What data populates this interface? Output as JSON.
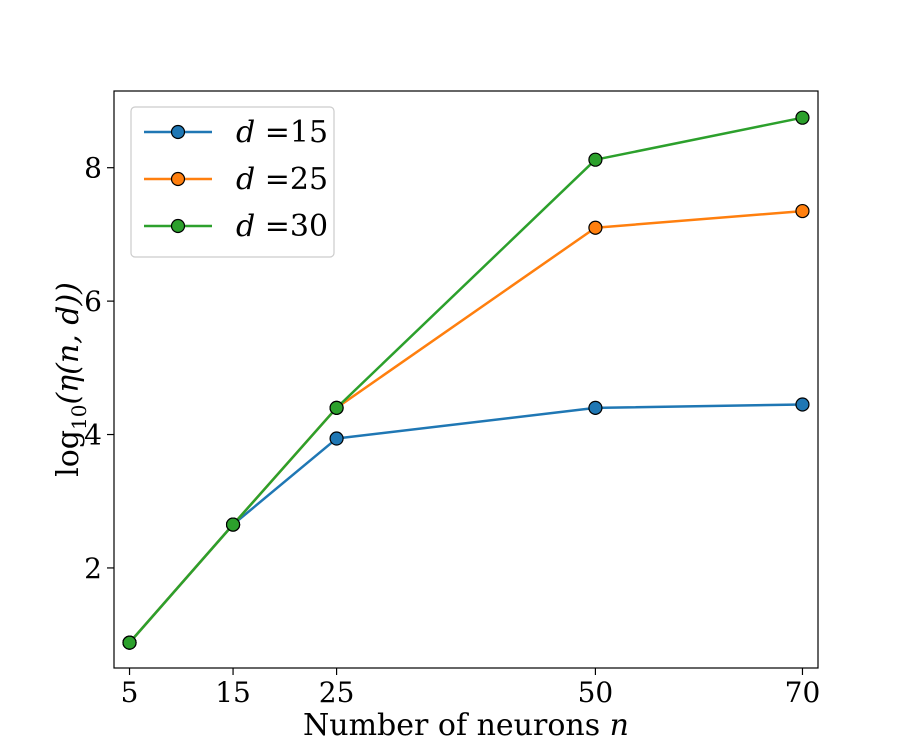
{
  "chart_data": {
    "type": "line",
    "x": [
      5,
      15,
      25,
      50,
      70
    ],
    "x_ticks": [
      "5",
      "15",
      "25",
      "50",
      "70"
    ],
    "xlim": [
      3.5,
      71.5
    ],
    "y_ticks": [
      "2",
      "4",
      "6",
      "8"
    ],
    "ylim": [
      0.5,
      9.15
    ],
    "xlabel_text": "Number of neurons ",
    "xlabel_var": "n",
    "ylabel_prefix": "log",
    "ylabel_sub": "10",
    "ylabel_body": "(η(n, d))",
    "grid": false,
    "legend_position": "top-left",
    "series": [
      {
        "name_var": "d",
        "name_eq": " =15",
        "color": "#1f77b4",
        "values": [
          0.88,
          2.65,
          3.94,
          4.4,
          4.45
        ]
      },
      {
        "name_var": "d",
        "name_eq": " =25",
        "color": "#ff7f0e",
        "values": [
          0.88,
          2.65,
          4.4,
          7.1,
          7.35
        ]
      },
      {
        "name_var": "d",
        "name_eq": " =30",
        "color": "#2ca02c",
        "values": [
          0.88,
          2.65,
          4.4,
          8.12,
          8.75
        ]
      }
    ]
  }
}
